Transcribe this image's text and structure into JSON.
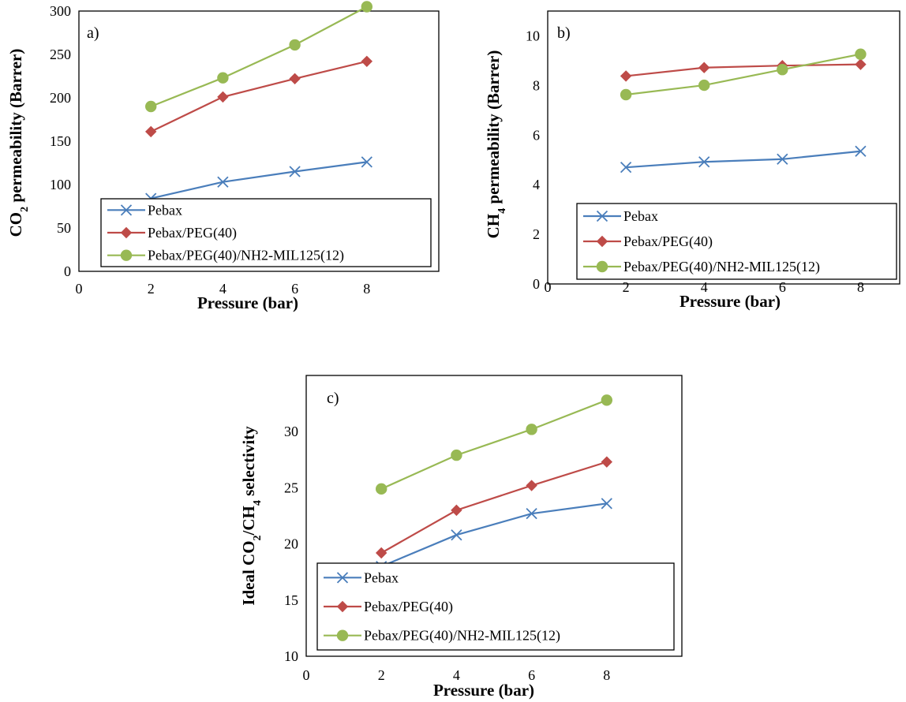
{
  "chart_data": [
    {
      "type": "line",
      "panel_label": "a)",
      "xlabel": "Pressure (bar)",
      "ylabel": "CO<sub>2</sub> permeability (Barrer)",
      "ylabel_parts": [
        "CO",
        "2",
        " permeability (Barrer)"
      ],
      "xlim": [
        0,
        10
      ],
      "ylim": [
        0,
        300
      ],
      "xticks": [
        0,
        2,
        4,
        6,
        8
      ],
      "yticks": [
        0,
        50,
        100,
        150,
        200,
        250,
        300
      ],
      "x": [
        2,
        4,
        6,
        8
      ],
      "legend_position": "bottom",
      "series": [
        {
          "name": "Pebax",
          "color": "#4a7ebb",
          "marker": "x",
          "values": [
            84,
            103,
            115,
            126
          ]
        },
        {
          "name": "Pebax/PEG(40)",
          "color": "#be4b48",
          "marker": "diamond",
          "values": [
            161,
            201,
            222,
            242
          ]
        },
        {
          "name": "Pebax/PEG(40)/NH2-MIL125(12)",
          "color": "#98b954",
          "marker": "circle",
          "values": [
            190,
            223,
            261,
            305
          ]
        }
      ]
    },
    {
      "type": "line",
      "panel_label": "b)",
      "xlabel": "Pressure (bar)",
      "ylabel_parts": [
        "CH",
        "4",
        " permeability (Barrer)"
      ],
      "xlim": [
        0,
        9
      ],
      "ylim": [
        0,
        11
      ],
      "xticks": [
        0,
        2,
        4,
        6,
        8
      ],
      "yticks": [
        0,
        2,
        4,
        6,
        8,
        10
      ],
      "x": [
        2,
        4,
        6,
        8
      ],
      "legend_position": "bottom-right",
      "series": [
        {
          "name": "Pebax",
          "color": "#4a7ebb",
          "marker": "x",
          "values": [
            4.7,
            4.92,
            5.03,
            5.35
          ]
        },
        {
          "name": "Pebax/PEG(40)",
          "color": "#be4b48",
          "marker": "diamond",
          "values": [
            8.38,
            8.72,
            8.8,
            8.85
          ]
        },
        {
          "name": "Pebax/PEG(40)/NH2-MIL125(12)",
          "color": "#98b954",
          "marker": "circle",
          "values": [
            7.63,
            8.01,
            8.64,
            9.26
          ]
        }
      ]
    },
    {
      "type": "line",
      "panel_label": "c)",
      "xlabel": "Pressure (bar)",
      "ylabel_parts": [
        "Ideal CO",
        "2",
        "/CH",
        "4",
        " selectivity"
      ],
      "xlim": [
        0,
        10
      ],
      "ylim": [
        10,
        35
      ],
      "xticks": [
        0,
        2,
        4,
        6,
        8
      ],
      "yticks": [
        10,
        15,
        20,
        25,
        30
      ],
      "x": [
        2,
        4,
        6,
        8
      ],
      "legend_position": "bottom-left",
      "series": [
        {
          "name": "Pebax",
          "color": "#4a7ebb",
          "marker": "x",
          "values": [
            18.0,
            20.8,
            22.7,
            23.6
          ]
        },
        {
          "name": "Pebax/PEG(40)",
          "color": "#be4b48",
          "marker": "diamond",
          "values": [
            19.2,
            23.0,
            25.2,
            27.3
          ]
        },
        {
          "name": "Pebax/PEG(40)/NH2-MIL125(12)",
          "color": "#98b954",
          "marker": "circle",
          "values": [
            24.9,
            27.9,
            30.2,
            32.8
          ]
        }
      ]
    }
  ]
}
